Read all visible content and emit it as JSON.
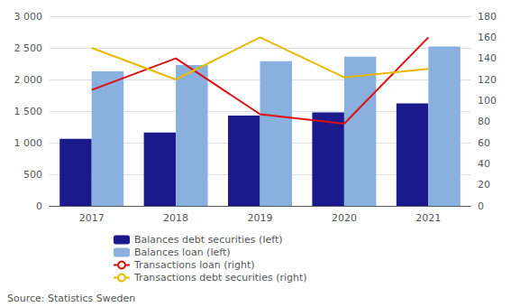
{
  "chart_data": {
    "type": "bar",
    "categories": [
      "2017",
      "2018",
      "2019",
      "2020",
      "2021"
    ],
    "series": [
      {
        "name": "Balances debt securities (left)",
        "type": "bar",
        "color": "#1a1a8c",
        "values": [
          1060,
          1160,
          1430,
          1480,
          1620
        ]
      },
      {
        "name": "Balances loan (left)",
        "type": "bar",
        "color": "#8ab0e0",
        "values": [
          2130,
          2230,
          2290,
          2360,
          2520
        ]
      },
      {
        "name": "Transactions loan (right)",
        "type": "line",
        "axis": "y2",
        "color": "#dd1010",
        "values": [
          110,
          140,
          87,
          78,
          160
        ]
      },
      {
        "name": "Transactions debt securities (right)",
        "type": "line",
        "axis": "y2",
        "color": "#e8b800",
        "values": [
          150,
          120,
          160,
          122,
          130
        ]
      }
    ],
    "ylim": [
      0,
      3000
    ],
    "yticks": [
      0,
      500,
      {
        "value": 1000,
        "label": "1 000"
      },
      {
        "value": 1500,
        "label": "1 500"
      },
      {
        "value": 2000,
        "label": "2 000"
      },
      {
        "value": 2500,
        "label": "2 500"
      },
      {
        "value": 3000,
        "label": "3 000"
      }
    ],
    "y2lim": [
      0,
      180
    ],
    "y2ticks": [
      0,
      20,
      40,
      60,
      80,
      100,
      120,
      140,
      160,
      180
    ],
    "grid": true,
    "legend": "bottom",
    "annotations": [
      "Source: Statistics Sweden"
    ]
  }
}
